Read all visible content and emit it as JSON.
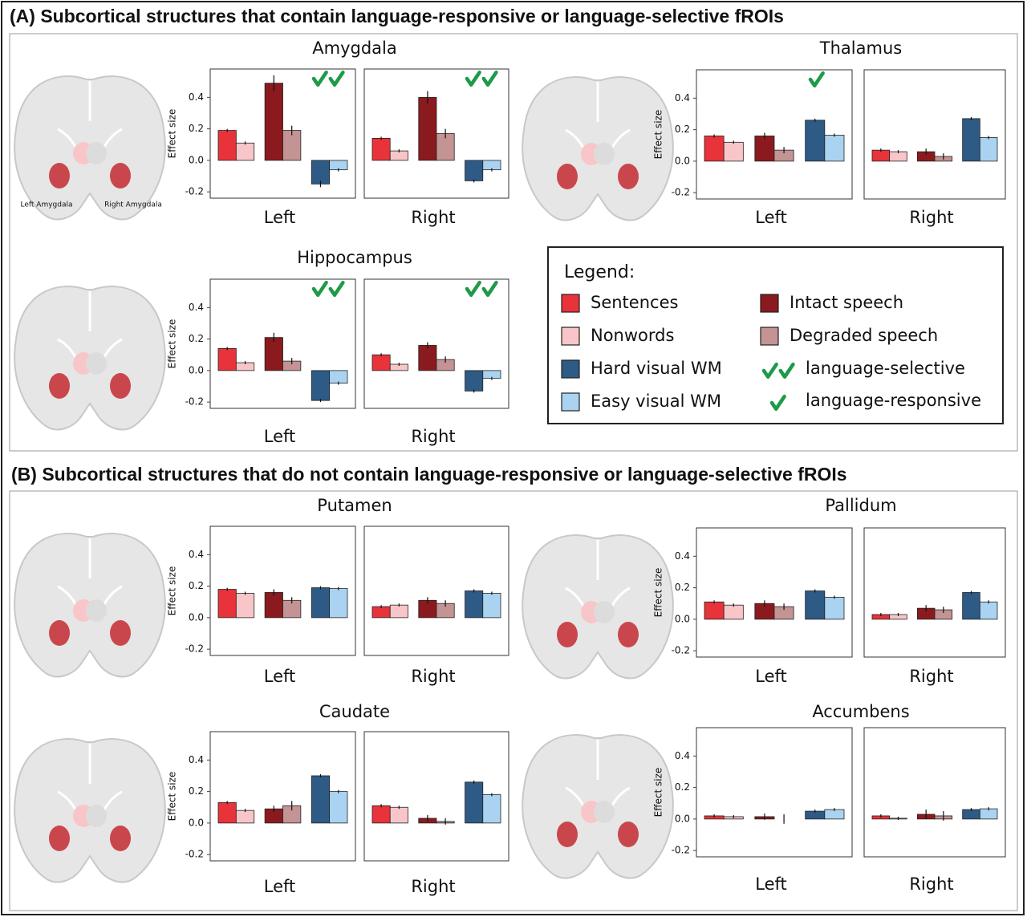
{
  "sections": [
    {
      "title": "(A) Subcortical structures that contain language-responsive or language-selective fROIs"
    },
    {
      "title": "(B) Subcortical structures that do not contain language-responsive or language-selective fROIs"
    }
  ],
  "legend": {
    "title": "Legend:",
    "items": [
      {
        "name": "Sentences",
        "color": "#e8333a"
      },
      {
        "name": "Nonwords",
        "color": "#f8c6c8"
      },
      {
        "name": "Intact speech",
        "color": "#8b1a1e"
      },
      {
        "name": "Degraded speech",
        "color": "#c49393"
      },
      {
        "name": "Hard visual WM",
        "color": "#2e5a86"
      },
      {
        "name": "Easy visual WM",
        "color": "#a9d3f0"
      }
    ],
    "selective": "language-selective",
    "responsive": "language-responsive",
    "check_color": "#1e9a48"
  },
  "chart_data": [
    {
      "type": "bar",
      "title": "Amygdala",
      "ylabel": "Effect size",
      "image_labels": [
        "Left Amygdala",
        "Right Amygdala"
      ],
      "ylim": [
        -0.24,
        0.58
      ],
      "yticks": [
        -0.2,
        {
          "value": 0,
          "label": "0.0"
        },
        0.2,
        0.4
      ],
      "panels": [
        {
          "label": "Left",
          "marker": "selective",
          "values": [
            0.19,
            0.11,
            0.49,
            0.19,
            -0.15,
            -0.06
          ],
          "errors": [
            0.01,
            0.01,
            0.05,
            0.03,
            0.02,
            0.01
          ]
        },
        {
          "label": "Right",
          "marker": "selective",
          "values": [
            0.14,
            0.06,
            0.4,
            0.17,
            -0.13,
            -0.06
          ],
          "errors": [
            0.01,
            0.01,
            0.04,
            0.03,
            0.01,
            0.01
          ]
        }
      ]
    },
    {
      "type": "bar",
      "title": "Thalamus",
      "ylabel": "Effect size",
      "ylim": [
        -0.24,
        0.58
      ],
      "yticks": [
        -0.2,
        {
          "value": 0,
          "label": "0.0"
        },
        0.2,
        0.4
      ],
      "panels": [
        {
          "label": "Left",
          "marker": "responsive",
          "values": [
            0.16,
            0.12,
            0.16,
            0.07,
            0.26,
            0.165
          ],
          "errors": [
            0.01,
            0.01,
            0.02,
            0.02,
            0.01,
            0.01
          ]
        },
        {
          "label": "Right",
          "values": [
            0.07,
            0.06,
            0.06,
            0.03,
            0.27,
            0.15
          ],
          "errors": [
            0.01,
            0.01,
            0.02,
            0.02,
            0.01,
            0.01
          ]
        }
      ]
    },
    {
      "type": "bar",
      "title": "Hippocampus",
      "ylabel": "Effect size",
      "ylim": [
        -0.24,
        0.58
      ],
      "yticks": [
        -0.2,
        {
          "value": 0,
          "label": "0.0"
        },
        0.2,
        0.4
      ],
      "panels": [
        {
          "label": "Left",
          "marker": "selective",
          "values": [
            0.14,
            0.05,
            0.21,
            0.06,
            -0.19,
            -0.08
          ],
          "errors": [
            0.01,
            0.01,
            0.03,
            0.02,
            0.01,
            0.01
          ]
        },
        {
          "label": "Right",
          "marker": "selective",
          "values": [
            0.1,
            0.04,
            0.16,
            0.07,
            -0.13,
            -0.05
          ],
          "errors": [
            0.01,
            0.01,
            0.02,
            0.02,
            0.01,
            0.01
          ]
        }
      ]
    },
    {
      "type": "bar",
      "title": "Putamen",
      "ylabel": "Effect size",
      "ylim": [
        -0.24,
        0.58
      ],
      "yticks": [
        -0.2,
        {
          "value": 0,
          "label": "0.0"
        },
        0.2,
        0.4
      ],
      "panels": [
        {
          "label": "Left",
          "values": [
            0.18,
            0.155,
            0.16,
            0.11,
            0.19,
            0.185
          ],
          "errors": [
            0.01,
            0.01,
            0.02,
            0.02,
            0.01,
            0.01
          ]
        },
        {
          "label": "Right",
          "values": [
            0.07,
            0.08,
            0.11,
            0.09,
            0.17,
            0.155
          ],
          "errors": [
            0.01,
            0.01,
            0.02,
            0.02,
            0.01,
            0.01
          ]
        }
      ]
    },
    {
      "type": "bar",
      "title": "Pallidum",
      "ylabel": "Effect size",
      "ylim": [
        -0.24,
        0.58
      ],
      "yticks": [
        -0.2,
        {
          "value": 0,
          "label": "0.0"
        },
        0.2,
        0.4
      ],
      "panels": [
        {
          "label": "Left",
          "values": [
            0.11,
            0.09,
            0.1,
            0.08,
            0.18,
            0.14
          ],
          "errors": [
            0.01,
            0.01,
            0.02,
            0.02,
            0.01,
            0.01
          ]
        },
        {
          "label": "Right",
          "values": [
            0.03,
            0.03,
            0.07,
            0.06,
            0.17,
            0.11
          ],
          "errors": [
            0.01,
            0.01,
            0.02,
            0.02,
            0.01,
            0.01
          ]
        }
      ]
    },
    {
      "type": "bar",
      "title": "Caudate",
      "ylabel": "Effect size",
      "ylim": [
        -0.24,
        0.58
      ],
      "yticks": [
        -0.2,
        {
          "value": 0,
          "label": "0.0"
        },
        0.2,
        0.4
      ],
      "panels": [
        {
          "label": "Left",
          "values": [
            0.13,
            0.08,
            0.09,
            0.11,
            0.3,
            0.2
          ],
          "errors": [
            0.01,
            0.01,
            0.02,
            0.03,
            0.01,
            0.01
          ]
        },
        {
          "label": "Right",
          "values": [
            0.11,
            0.1,
            0.03,
            0.01,
            0.26,
            0.18
          ],
          "errors": [
            0.01,
            0.01,
            0.02,
            0.02,
            0.01,
            0.01
          ]
        }
      ]
    },
    {
      "type": "bar",
      "title": "Accumbens",
      "ylabel": "Effect size",
      "ylim": [
        -0.24,
        0.58
      ],
      "yticks": [
        -0.2,
        {
          "value": 0,
          "label": "0.0"
        },
        0.2,
        0.4
      ],
      "panels": [
        {
          "label": "Left",
          "values": [
            0.02,
            0.015,
            0.015,
            0,
            0.05,
            0.06
          ],
          "errors": [
            0.01,
            0.01,
            0.02,
            0.03,
            0.01,
            0.01
          ]
        },
        {
          "label": "Right",
          "values": [
            0.02,
            0.005,
            0.03,
            0.02,
            0.06,
            0.065
          ],
          "errors": [
            0.01,
            0.01,
            0.03,
            0.03,
            0.01,
            0.01
          ]
        }
      ]
    }
  ]
}
